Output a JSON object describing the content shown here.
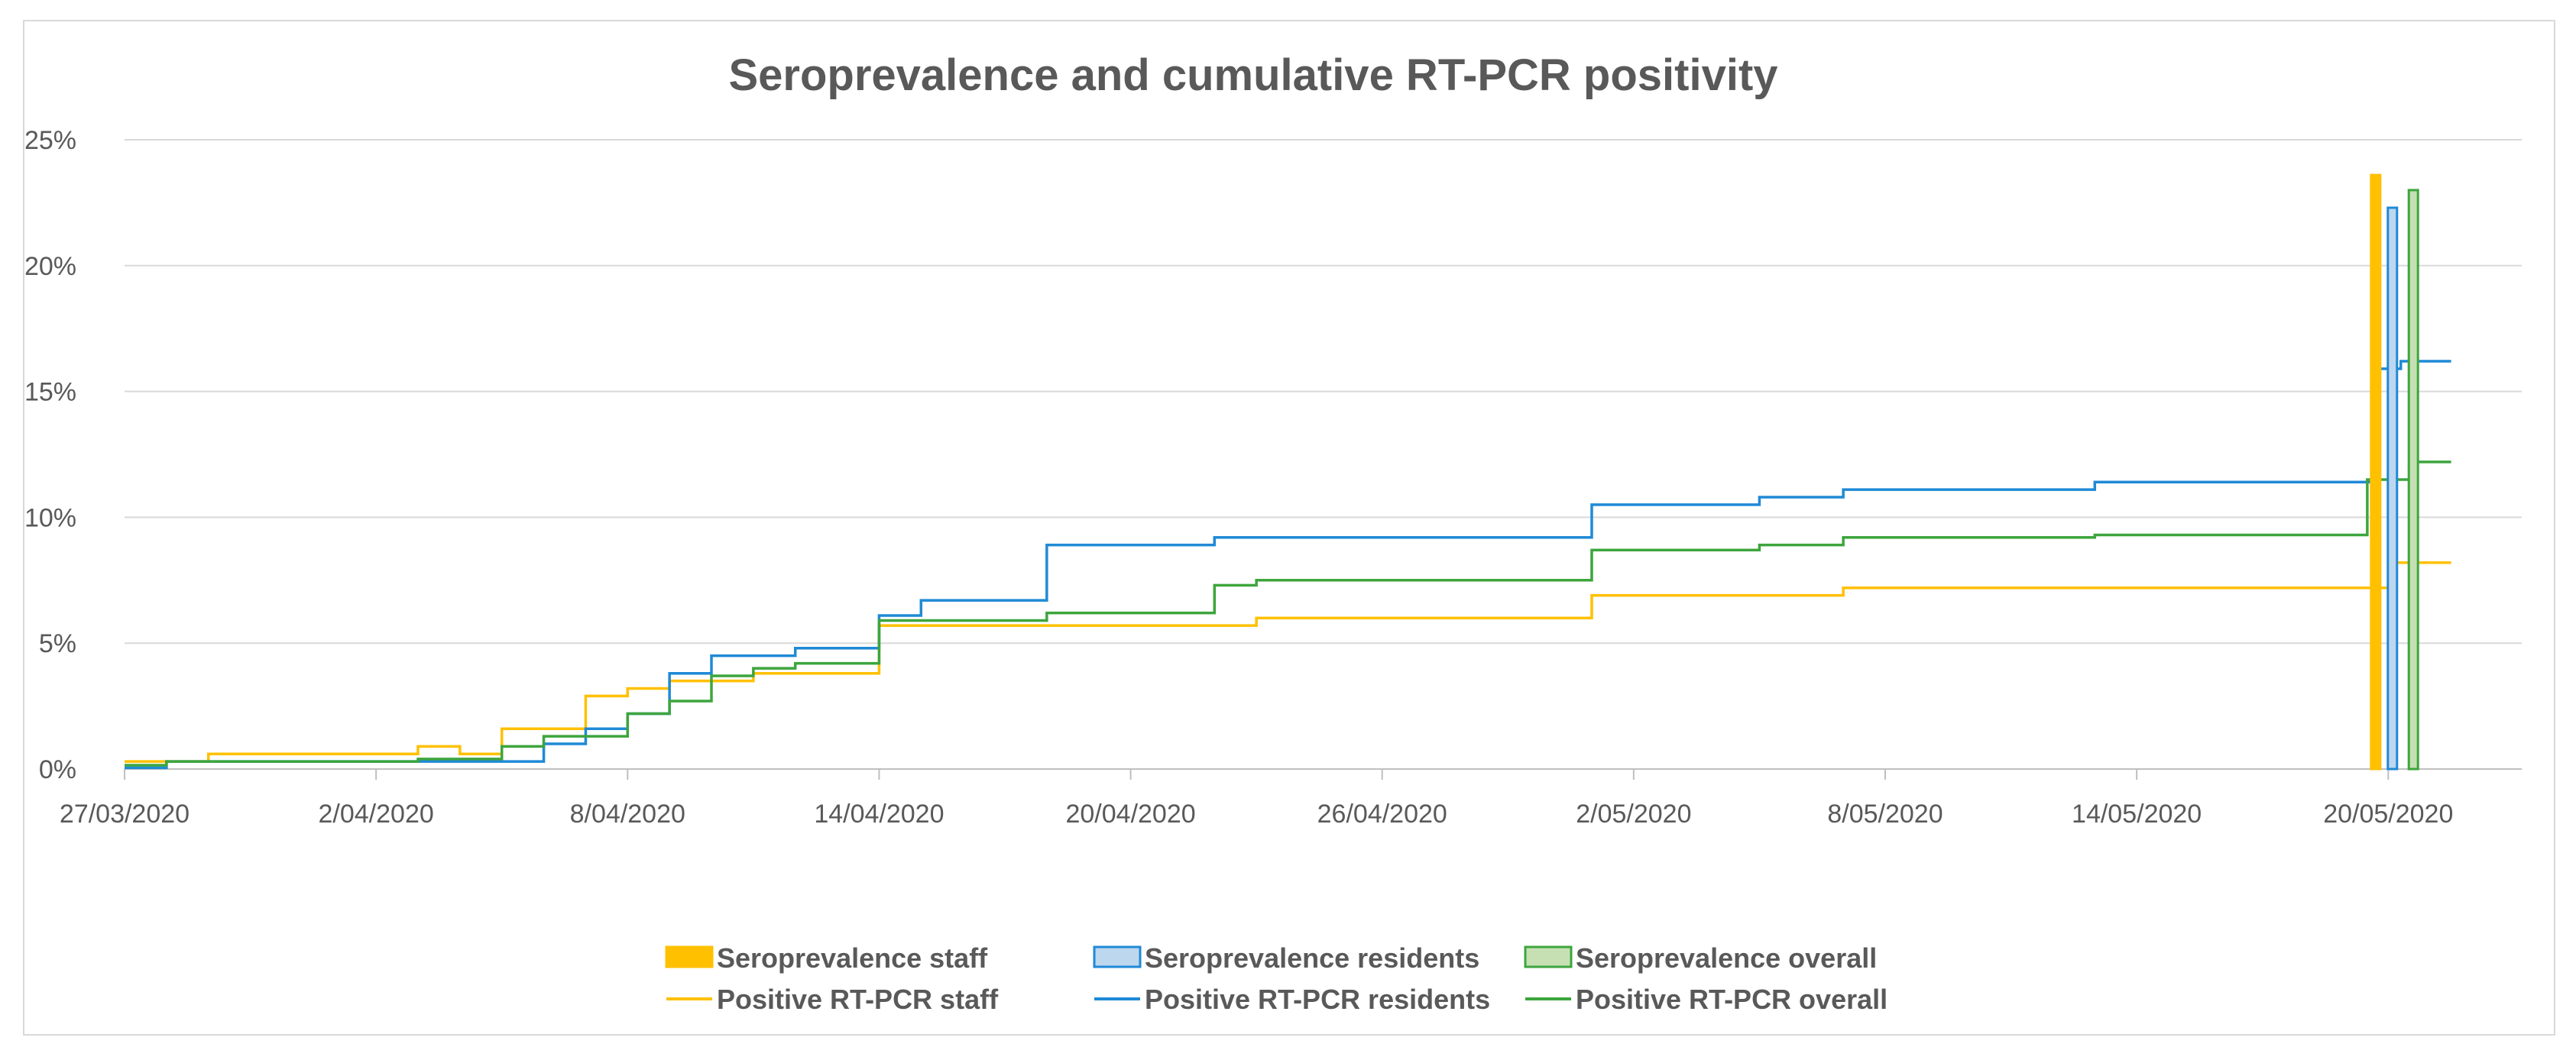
{
  "chart_data": {
    "type": "line",
    "title": "Seroprevalence and cumulative RT-PCR positivity",
    "xlabel": "",
    "ylabel": "",
    "xlim_days": [
      0,
      56
    ],
    "ylim": [
      0,
      25
    ],
    "y_ticks": [
      0,
      5,
      10,
      15,
      20,
      25
    ],
    "y_tick_labels": [
      "0%",
      "5%",
      "10%",
      "15%",
      "20%",
      "25%"
    ],
    "x_ticks_days": [
      0,
      6,
      12,
      18,
      24,
      30,
      36,
      42,
      48,
      54
    ],
    "x_tick_labels": [
      "27/03/2020",
      "2/04/2020",
      "8/04/2020",
      "14/04/2020",
      "20/04/2020",
      "26/04/2020",
      "2/05/2020",
      "8/05/2020",
      "14/05/2020",
      "20/05/2020"
    ],
    "grid": "horizontal",
    "legend_position": "bottom",
    "x_note": "x values are days since 27/03/2020",
    "bars": [
      {
        "name": "Seroprevalence staff",
        "x": 53.7,
        "value": 23.6,
        "color": "#FFC000",
        "fill": "#FFC000"
      },
      {
        "name": "Seroprevalence residents",
        "x": 54.1,
        "value": 22.3,
        "color": "#1F8AD6",
        "fill": "#BDD7EE"
      },
      {
        "name": "Seroprevalence overall",
        "x": 54.6,
        "value": 23.0,
        "color": "#3DA53D",
        "fill": "#C6E0B4"
      }
    ],
    "series": [
      {
        "name": "Positive RT-PCR staff",
        "color": "#FFC000",
        "style": "step",
        "x": [
          0,
          2,
          7,
          8,
          9,
          11,
          12,
          13,
          14,
          15,
          18,
          21,
          27,
          35,
          41,
          54,
          55.5
        ],
        "y": [
          0.3,
          0.6,
          0.9,
          0.6,
          1.6,
          2.9,
          3.2,
          3.5,
          3.5,
          3.8,
          5.7,
          5.7,
          6.0,
          6.9,
          7.2,
          8.2,
          8.2
        ]
      },
      {
        "name": "Positive RT-PCR residents",
        "color": "#1F8AD6",
        "style": "step",
        "x": [
          0,
          1,
          7,
          10,
          11,
          12,
          13,
          14,
          15,
          16,
          18,
          19,
          22,
          26,
          35,
          39,
          41,
          47,
          53.7,
          54.3,
          55.5
        ],
        "y": [
          0.05,
          0.3,
          0.3,
          1.0,
          1.6,
          2.2,
          3.8,
          4.5,
          4.5,
          4.8,
          6.1,
          6.7,
          8.9,
          9.2,
          10.5,
          10.8,
          11.1,
          11.4,
          15.9,
          16.2,
          16.2
        ]
      },
      {
        "name": "Positive RT-PCR overall",
        "color": "#3DA53D",
        "style": "step",
        "x": [
          0,
          1,
          7,
          9,
          10,
          12,
          13,
          14,
          15,
          16,
          18,
          22,
          26,
          27,
          35,
          39,
          41,
          47,
          53.5,
          54.5,
          55.5
        ],
        "y": [
          0.15,
          0.3,
          0.4,
          0.9,
          1.3,
          2.2,
          2.7,
          3.7,
          4.0,
          4.2,
          5.9,
          6.2,
          7.3,
          7.5,
          8.7,
          8.9,
          9.2,
          9.3,
          11.5,
          12.2,
          12.2
        ]
      }
    ],
    "legend": [
      {
        "label": "Seroprevalence staff",
        "kind": "box",
        "color": "#FFC000",
        "fill": "#FFC000"
      },
      {
        "label": "Seroprevalence residents",
        "kind": "box",
        "color": "#1F8AD6",
        "fill": "#BDD7EE"
      },
      {
        "label": "Seroprevalence overall",
        "kind": "box",
        "color": "#3DA53D",
        "fill": "#C6E0B4"
      },
      {
        "label": "Positive RT-PCR staff",
        "kind": "line",
        "color": "#FFC000"
      },
      {
        "label": "Positive RT-PCR residents",
        "kind": "line",
        "color": "#1F8AD6"
      },
      {
        "label": "Positive RT-PCR overall",
        "kind": "line",
        "color": "#3DA53D"
      }
    ]
  }
}
